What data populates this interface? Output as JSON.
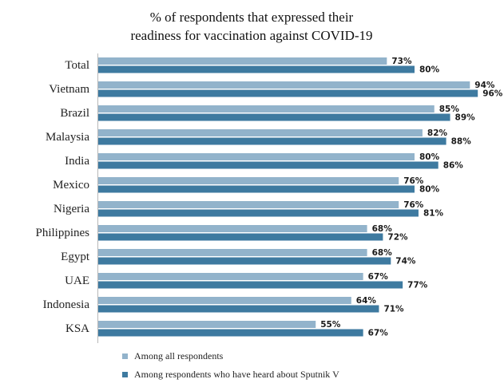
{
  "chart_data": {
    "type": "bar",
    "orientation": "horizontal",
    "title_lines": [
      "% of respondents that  expressed their",
      "readiness  for vaccination  against  COVID-19"
    ],
    "categories": [
      "Total",
      "Vietnam",
      "Brazil",
      "Malaysia",
      "India",
      "Mexico",
      "Nigeria",
      "Philippines",
      "Egypt",
      "UAE",
      "Indonesia",
      "KSA"
    ],
    "series": [
      {
        "name": "Among all respondents",
        "color": "#92b3cb",
        "values": [
          73,
          94,
          85,
          82,
          80,
          76,
          76,
          68,
          68,
          67,
          64,
          55
        ],
        "labels": [
          "73%",
          "94%",
          "85%",
          "82%",
          "80%",
          "76%",
          "76%",
          "68%",
          "68%",
          "67%",
          "64%",
          "55%"
        ]
      },
      {
        "name": "Among respondents who have heard about Sputnik V",
        "color": "#3e7aa0",
        "values": [
          80,
          96,
          89,
          88,
          86,
          80,
          81,
          72,
          74,
          77,
          71,
          67
        ],
        "labels": [
          "80%",
          "96%",
          "89%",
          "88%",
          "86%",
          "80%",
          "81%",
          "72%",
          "74%",
          "77%",
          "71%",
          "67%"
        ]
      }
    ],
    "xlim": [
      0,
      100
    ],
    "grid": false,
    "legend_position": "bottom-left"
  }
}
